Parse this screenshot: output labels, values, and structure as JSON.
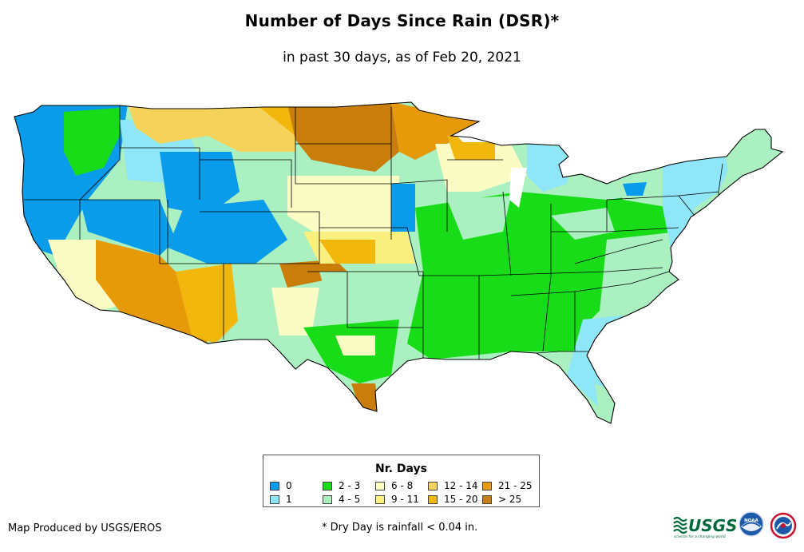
{
  "title": "Number of Days Since Rain (DSR)*",
  "subtitle": "in past 30 days, as of Feb 20, 2021",
  "legend": {
    "title": "Nr. Days",
    "items": [
      {
        "label": "0",
        "color": "#0a9bea"
      },
      {
        "label": "1",
        "color": "#8ee6f8"
      },
      {
        "label": "2 - 3",
        "color": "#19dc19"
      },
      {
        "label": "4 - 5",
        "color": "#aaf0c0"
      },
      {
        "label": "6 - 8",
        "color": "#fbfbc4"
      },
      {
        "label": "9 - 11",
        "color": "#f9f080"
      },
      {
        "label": "12 - 14",
        "color": "#f5d25a"
      },
      {
        "label": "15 - 20",
        "color": "#f2b70d"
      },
      {
        "label": "21 - 25",
        "color": "#e69a0a"
      },
      {
        "label": "> 25",
        "color": "#c97d0a"
      }
    ]
  },
  "credit": "Map Produced by USGS/EROS",
  "footnote": "* Dry Day is rainfall < 0.04 in.",
  "logos": {
    "usgs_text": "USGS",
    "usgs_tagline": "science for a changing world",
    "noaa_text": "NOAA"
  },
  "colors": {
    "blue0": "#0a9bea",
    "cyan1": "#8ee6f8",
    "green2_3": "#19dc19",
    "mint4_5": "#aaf0c0",
    "cream6_8": "#fbfbc4",
    "yellow9_11": "#f9f080",
    "gold12_14": "#f5d25a",
    "orange15_20": "#f2b70d",
    "orange21_25": "#e69a0a",
    "brown25": "#c97d0a",
    "usgs_green": "#00693c",
    "noaa_blue": "#1a5aa8"
  }
}
